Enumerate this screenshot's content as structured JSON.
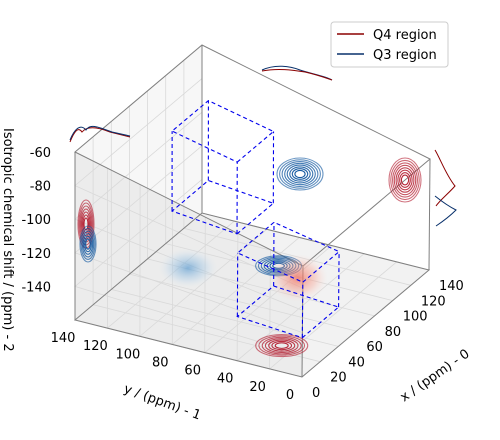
{
  "chart_data": {
    "type": "3d-contour",
    "title": "",
    "xlabel": "x / (ppm) - 0",
    "ylabel": "y / (ppm) - 1",
    "zlabel": "Isotropic chemical shift / (ppm) - 2",
    "xlim": [
      0,
      140
    ],
    "ylim": [
      0,
      140
    ],
    "zlim": [
      -160,
      -60
    ],
    "xticks": [
      0,
      20,
      40,
      60,
      80,
      100,
      120,
      140
    ],
    "yticks": [
      0,
      20,
      40,
      60,
      80,
      100,
      120,
      140
    ],
    "zticks": [
      -140,
      -120,
      -100,
      -80,
      -60
    ],
    "grid": true,
    "legend_position": "top-right",
    "series": [
      {
        "name": "Q4 region",
        "color": "#8b0000",
        "cmap": "Reds",
        "center": {
          "x": 20,
          "y": 20,
          "z": -110
        },
        "box": {
          "x": [
            0,
            40
          ],
          "y": [
            0,
            40
          ],
          "z": [
            -130,
            -80
          ]
        }
      },
      {
        "name": "Q3 region",
        "color": "#08306b",
        "cmap": "Blues",
        "center": {
          "x": 100,
          "y": 100,
          "z": -95
        },
        "box": {
          "x": [
            80,
            120
          ],
          "y": [
            80,
            120
          ],
          "z": [
            -120,
            -70
          ]
        }
      }
    ]
  }
}
